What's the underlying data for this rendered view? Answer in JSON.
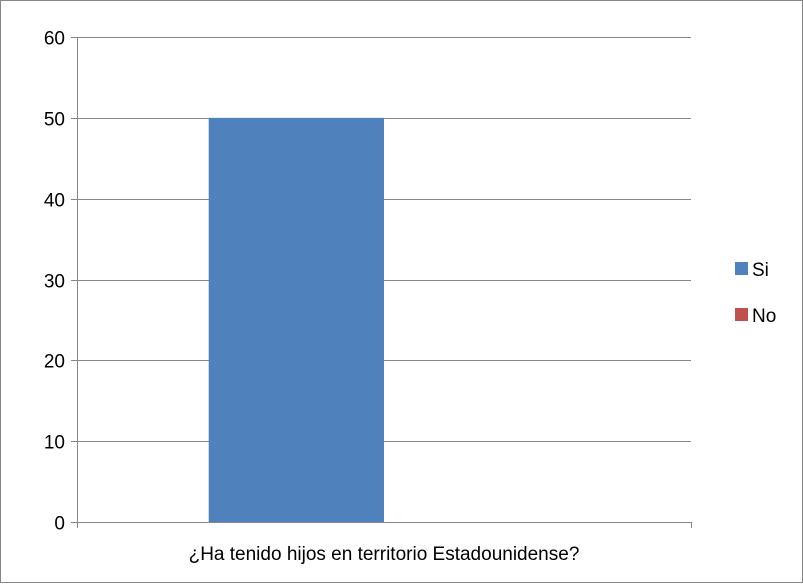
{
  "chart_data": {
    "type": "bar",
    "categories": [
      "¿Ha tenido hijos en territorio Estadounidense?"
    ],
    "series": [
      {
        "name": "Si",
        "values": [
          50
        ],
        "color": "#4F81BD"
      },
      {
        "name": "No",
        "values": [
          0
        ],
        "color": "#C0504D"
      }
    ],
    "title": "",
    "xlabel": "",
    "ylabel": "",
    "ylim": [
      0,
      60
    ],
    "yticks": [
      "0",
      "10",
      "20",
      "30",
      "40",
      "50",
      "60"
    ],
    "grid": true,
    "legend_position": "right"
  }
}
